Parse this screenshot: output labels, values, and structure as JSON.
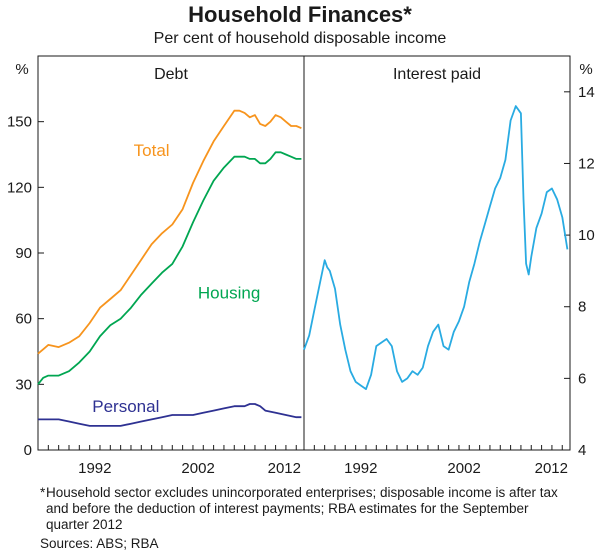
{
  "title": "Household Finances*",
  "subtitle": "Per cent of household disposable income",
  "footnote_mark": "*",
  "footnote": "Household sector excludes unincorporated enterprises; disposable income is after tax and before the deduction of interest payments; RBA estimates for the September quarter 2012",
  "sources": "Sources: ABS; RBA",
  "colors": {
    "total": "#f7941d",
    "housing": "#00a651",
    "personal": "#2e3192",
    "interest": "#29abe2",
    "axis": "#1a1a1a"
  },
  "chart_data": [
    {
      "type": "line",
      "panel_title": "Debt",
      "ylabel": "%",
      "ylim": [
        0,
        180
      ],
      "yticks": [
        0,
        30,
        60,
        90,
        120,
        150
      ],
      "xlim": [
        1987,
        2012.75
      ],
      "xtick_labels": [
        "1992",
        "2002",
        "2012"
      ],
      "xtick_values": [
        1992,
        2002,
        2012
      ],
      "series": [
        {
          "name": "Total",
          "key": "total",
          "x": [
            1987.0,
            1987.5,
            1988.0,
            1989.0,
            1990.0,
            1991.0,
            1992.0,
            1993.0,
            1994.0,
            1995.0,
            1996.0,
            1997.0,
            1998.0,
            1999.0,
            2000.0,
            2001.0,
            2002.0,
            2003.0,
            2004.0,
            2005.0,
            2006.0,
            2006.5,
            2007.0,
            2007.5,
            2008.0,
            2008.5,
            2009.0,
            2009.5,
            2010.0,
            2010.5,
            2011.0,
            2011.5,
            2012.0,
            2012.5
          ],
          "values": [
            44,
            46,
            48,
            47,
            49,
            52,
            58,
            65,
            69,
            73,
            80,
            87,
            94,
            99,
            103,
            110,
            122,
            132,
            141,
            148,
            155,
            155,
            154,
            152,
            153,
            149,
            148,
            150,
            153,
            152,
            150,
            148,
            148,
            147
          ]
        },
        {
          "name": "Housing",
          "key": "housing",
          "x": [
            1987.0,
            1987.5,
            1988.0,
            1989.0,
            1990.0,
            1991.0,
            1992.0,
            1993.0,
            1994.0,
            1995.0,
            1996.0,
            1997.0,
            1998.0,
            1999.0,
            2000.0,
            2001.0,
            2002.0,
            2003.0,
            2004.0,
            2005.0,
            2006.0,
            2006.5,
            2007.0,
            2007.5,
            2008.0,
            2008.5,
            2009.0,
            2009.5,
            2010.0,
            2010.5,
            2011.0,
            2011.5,
            2012.0,
            2012.5
          ],
          "values": [
            30,
            33,
            34,
            34,
            36,
            40,
            45,
            52,
            57,
            60,
            65,
            71,
            76,
            81,
            85,
            93,
            104,
            114,
            123,
            129,
            134,
            134,
            134,
            133,
            133,
            131,
            131,
            133,
            136,
            136,
            135,
            134,
            133,
            133
          ]
        },
        {
          "name": "Personal",
          "key": "personal",
          "x": [
            1987.0,
            1988.0,
            1989.0,
            1990.0,
            1991.0,
            1992.0,
            1993.0,
            1994.0,
            1995.0,
            1996.0,
            1997.0,
            1998.0,
            1999.0,
            2000.0,
            2001.0,
            2002.0,
            2003.0,
            2004.0,
            2005.0,
            2006.0,
            2007.0,
            2007.5,
            2008.0,
            2008.5,
            2009.0,
            2010.0,
            2011.0,
            2012.0,
            2012.5
          ],
          "values": [
            14,
            14,
            14,
            13,
            12,
            11,
            11,
            11,
            11,
            12,
            13,
            14,
            15,
            16,
            16,
            16,
            17,
            18,
            19,
            20,
            20,
            21,
            21,
            20,
            18,
            17,
            16,
            15,
            15
          ]
        }
      ],
      "annotations": [
        "Total",
        "Housing",
        "Personal"
      ]
    },
    {
      "type": "line",
      "panel_title": "Interest paid",
      "ylabel": "%",
      "ylim": [
        4,
        15
      ],
      "yticks": [
        4,
        6,
        8,
        10,
        12,
        14
      ],
      "xlim": [
        1987,
        2012.75
      ],
      "xtick_labels": [
        "1992",
        "2002",
        "2012"
      ],
      "xtick_values": [
        1992,
        2002,
        2012
      ],
      "series": [
        {
          "name": "Interest paid",
          "key": "interest",
          "x": [
            1987.0,
            1987.5,
            1988.0,
            1988.5,
            1989.0,
            1989.25,
            1989.5,
            1990.0,
            1990.5,
            1991.0,
            1991.5,
            1992.0,
            1992.5,
            1993.0,
            1993.5,
            1994.0,
            1994.5,
            1995.0,
            1995.5,
            1996.0,
            1996.5,
            1997.0,
            1997.5,
            1998.0,
            1998.5,
            1999.0,
            1999.5,
            2000.0,
            2000.5,
            2001.0,
            2001.5,
            2002.0,
            2002.5,
            2003.0,
            2003.5,
            2004.0,
            2004.5,
            2005.0,
            2005.5,
            2006.0,
            2006.5,
            2007.0,
            2007.5,
            2008.0,
            2008.25,
            2008.5,
            2008.75,
            2009.0,
            2009.5,
            2010.0,
            2010.5,
            2011.0,
            2011.5,
            2012.0,
            2012.5
          ],
          "values": [
            6.8,
            7.2,
            7.9,
            8.6,
            9.3,
            9.1,
            9.0,
            8.5,
            7.5,
            6.8,
            6.2,
            5.9,
            5.8,
            5.7,
            6.1,
            6.9,
            7.0,
            7.1,
            6.9,
            6.2,
            5.9,
            6.0,
            6.2,
            6.1,
            6.3,
            6.9,
            7.3,
            7.5,
            6.9,
            6.8,
            7.3,
            7.6,
            8.0,
            8.7,
            9.2,
            9.8,
            10.3,
            10.8,
            11.3,
            11.6,
            12.1,
            13.2,
            13.6,
            13.4,
            11.0,
            9.2,
            8.9,
            9.4,
            10.2,
            10.6,
            11.2,
            11.3,
            11.0,
            10.5,
            9.6
          ]
        }
      ]
    }
  ]
}
